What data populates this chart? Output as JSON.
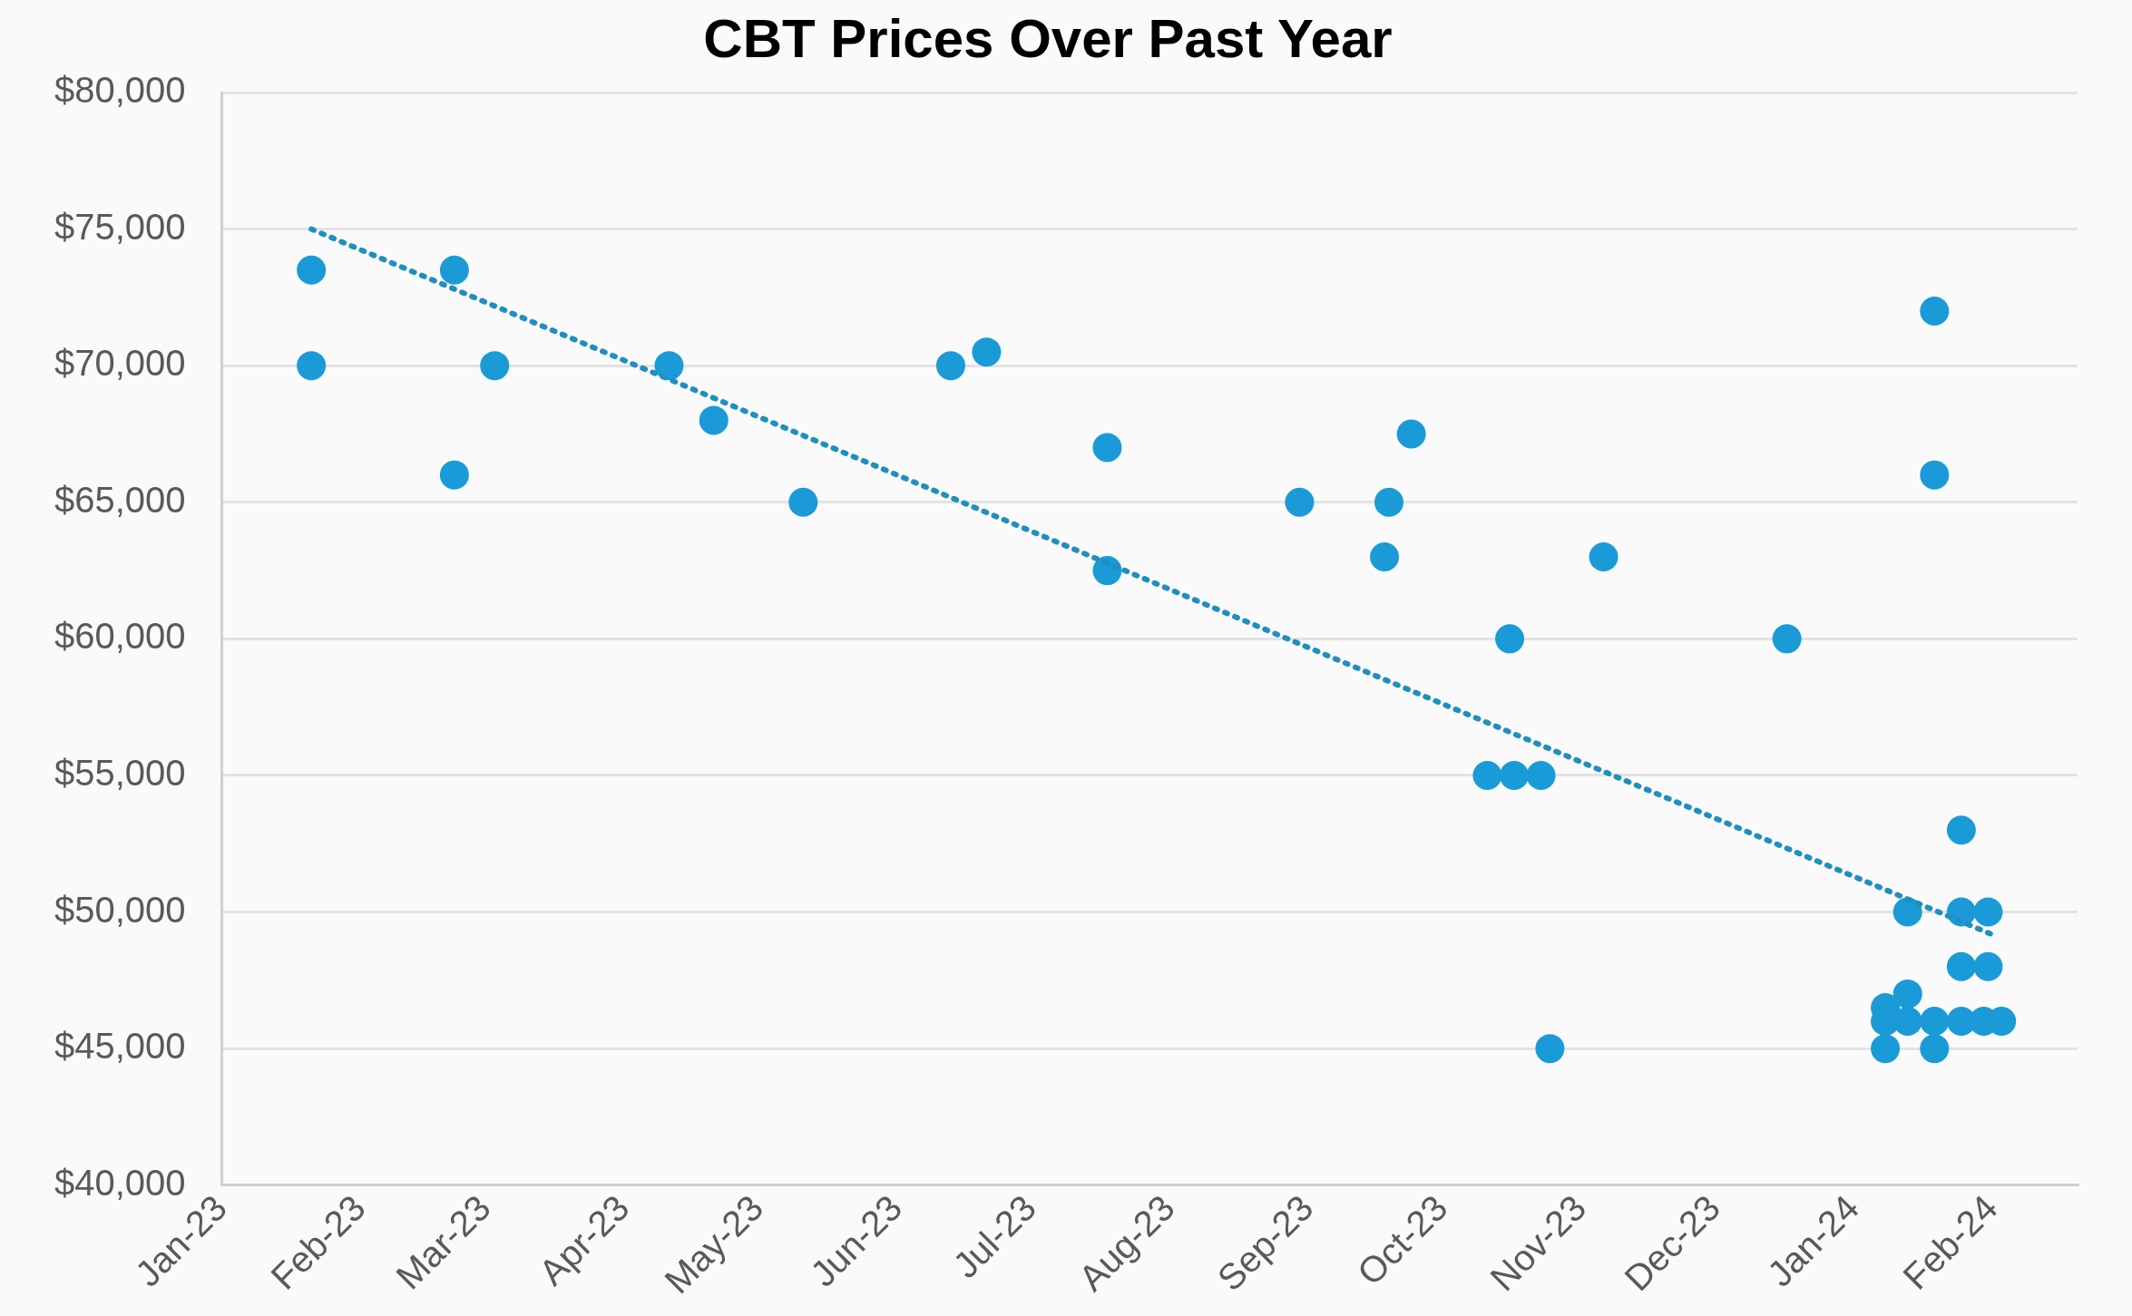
{
  "chart_data": {
    "type": "scatter",
    "title": "CBT Prices Over Past Year",
    "xlim": [
      "2023-01-01",
      "2024-02-20"
    ],
    "xticks": [
      {
        "value": "2023-01-01",
        "label": "Jan-23"
      },
      {
        "value": "2023-02-01",
        "label": "Feb-23"
      },
      {
        "value": "2023-03-01",
        "label": "Mar-23"
      },
      {
        "value": "2023-04-01",
        "label": "Apr-23"
      },
      {
        "value": "2023-05-01",
        "label": "May-23"
      },
      {
        "value": "2023-06-01",
        "label": "Jun-23"
      },
      {
        "value": "2023-07-01",
        "label": "Jul-23"
      },
      {
        "value": "2023-08-01",
        "label": "Aug-23"
      },
      {
        "value": "2023-09-01",
        "label": "Sep-23"
      },
      {
        "value": "2023-10-01",
        "label": "Oct-23"
      },
      {
        "value": "2023-11-01",
        "label": "Nov-23"
      },
      {
        "value": "2023-12-01",
        "label": "Dec-23"
      },
      {
        "value": "2024-01-01",
        "label": "Jan-24"
      },
      {
        "value": "2024-02-01",
        "label": "Feb-24"
      }
    ],
    "ylim": [
      40000,
      80000
    ],
    "yticks": [
      {
        "value": 40000,
        "label": "$40,000"
      },
      {
        "value": 45000,
        "label": "$45,000"
      },
      {
        "value": 50000,
        "label": "$50,000"
      },
      {
        "value": 55000,
        "label": "$55,000"
      },
      {
        "value": 60000,
        "label": "$60,000"
      },
      {
        "value": 65000,
        "label": "$65,000"
      },
      {
        "value": 70000,
        "label": "$70,000"
      },
      {
        "value": 75000,
        "label": "$75,000"
      },
      {
        "value": 80000,
        "label": "$80,000"
      }
    ],
    "grid": "y",
    "marker": "circle",
    "series": [
      {
        "color": "#1a9bd7",
        "x": [
          "2023-01-21",
          "2023-01-21",
          "2023-02-22",
          "2023-02-22",
          "2023-03-03",
          "2023-04-11",
          "2023-04-21",
          "2023-05-11",
          "2023-06-13",
          "2023-06-21",
          "2023-07-18",
          "2023-07-18",
          "2023-08-30",
          "2023-09-19",
          "2023-09-18",
          "2023-09-24",
          "2023-10-16",
          "2023-10-11",
          "2023-10-17",
          "2023-10-23",
          "2023-10-25",
          "2023-11-06",
          "2023-12-17",
          "2024-01-19",
          "2024-01-19",
          "2024-01-13",
          "2024-01-25",
          "2024-01-25",
          "2024-01-31",
          "2024-01-25",
          "2024-01-31",
          "2024-01-13",
          "2024-01-08",
          "2024-01-08",
          "2024-01-08",
          "2024-01-19",
          "2024-01-13",
          "2024-01-19",
          "2024-01-25",
          "2024-01-30",
          "2024-02-03"
        ],
        "values": [
          73500,
          70000,
          73500,
          66000,
          70000,
          70000,
          68000,
          65000,
          70000,
          70500,
          67000,
          62500,
          65000,
          65000,
          63000,
          67500,
          60000,
          55000,
          55000,
          55000,
          45000,
          63000,
          60000,
          72000,
          66000,
          50000,
          53000,
          50000,
          50000,
          48000,
          48000,
          47000,
          46500,
          46000,
          45000,
          45000,
          46000,
          46000,
          46000,
          46000,
          46000
        ]
      },
      {
        "type": "line",
        "color": "#1f8fbf",
        "line_style": "dotted",
        "marker": "none",
        "x": [
          "2023-01-21",
          "2024-02-02"
        ],
        "values": [
          75000,
          49100
        ]
      }
    ]
  }
}
